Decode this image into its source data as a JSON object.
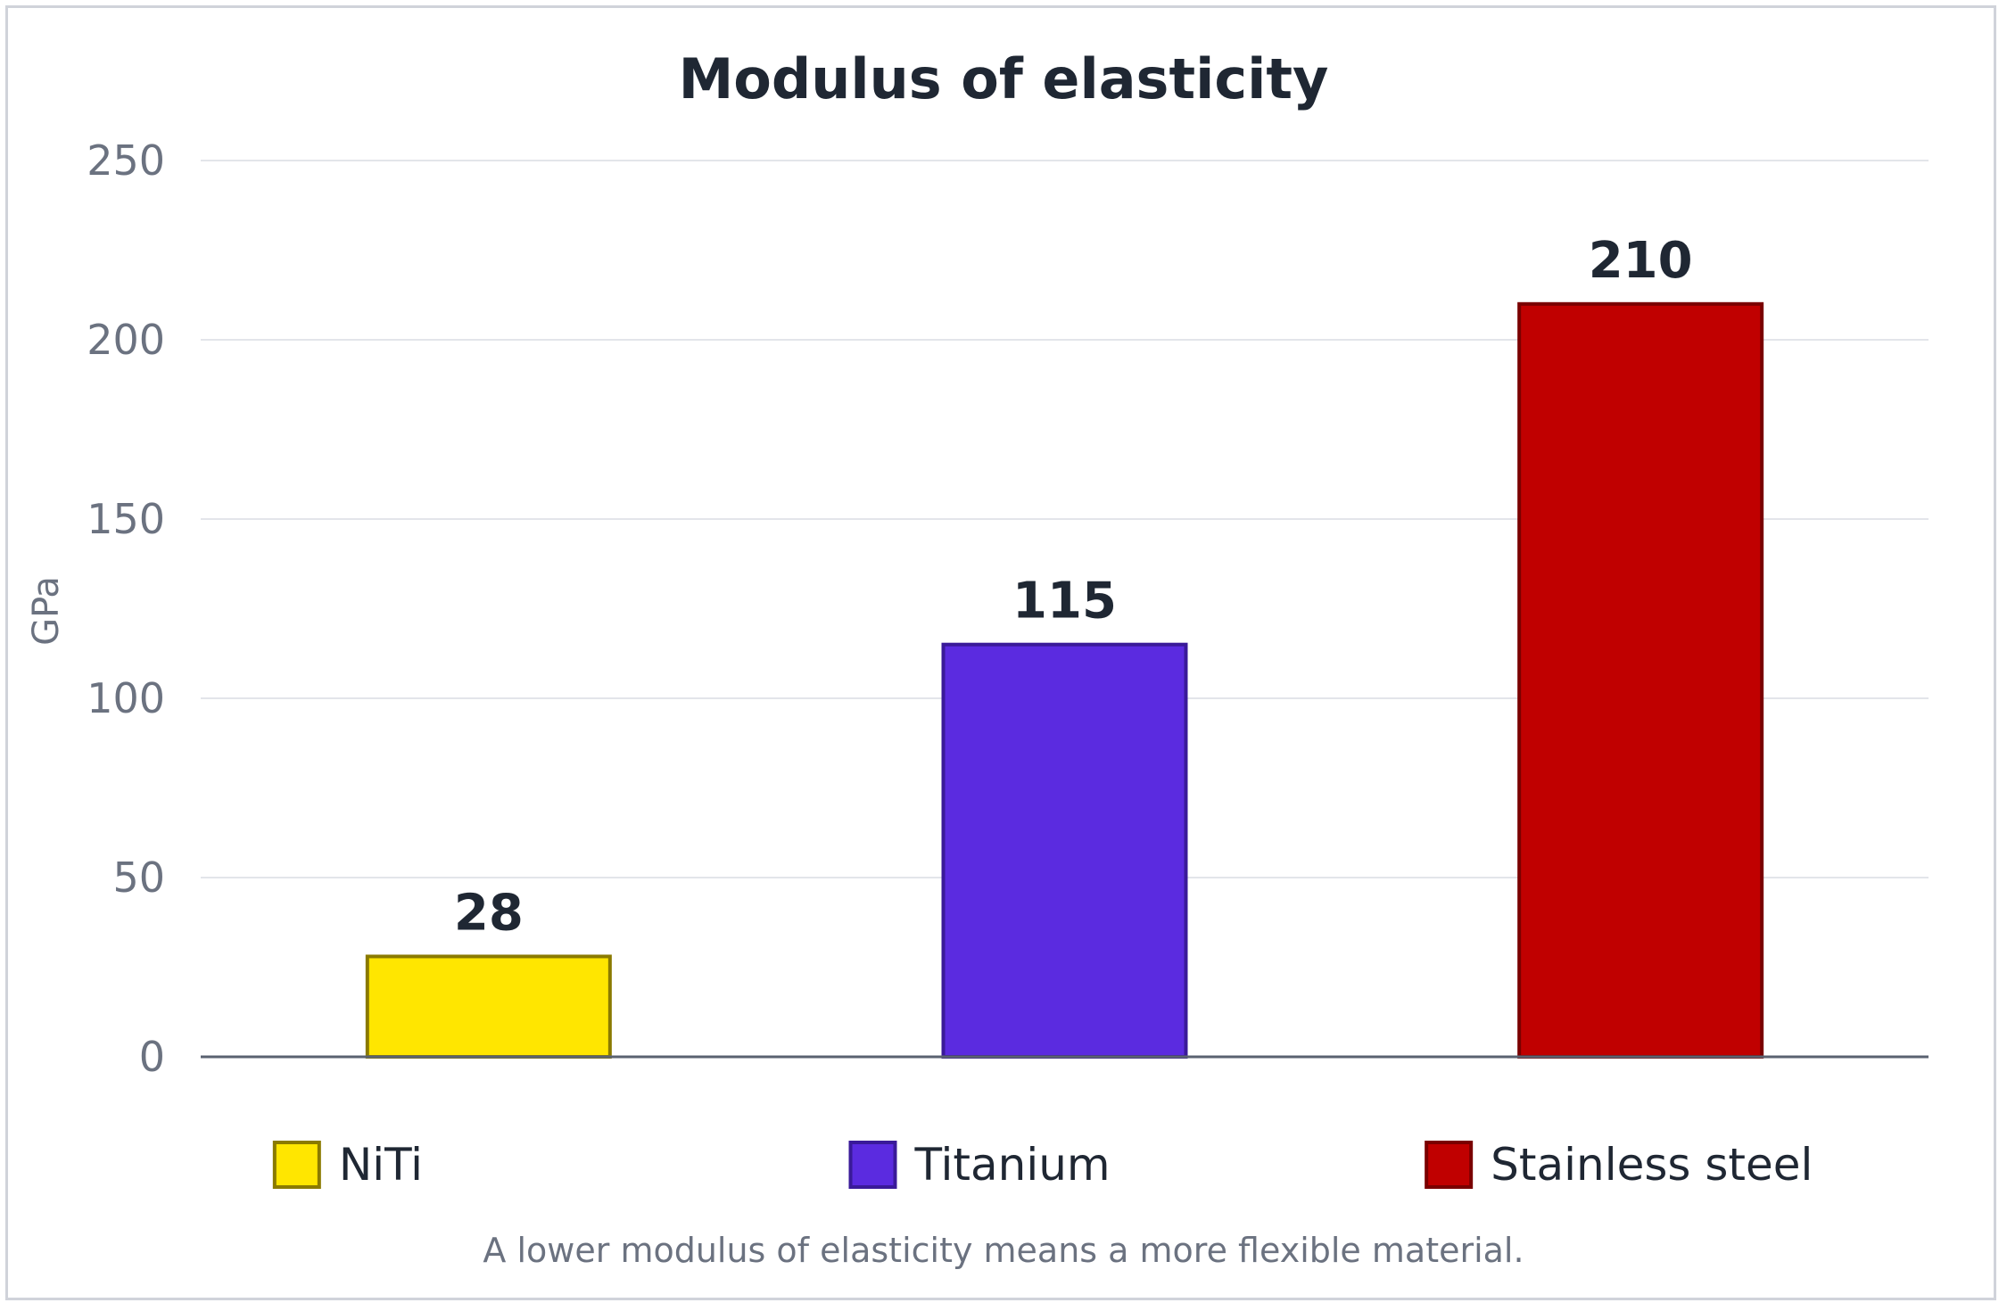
{
  "chart_data": {
    "type": "bar",
    "title": "Modulus of elasticity",
    "ylabel": "GPa",
    "xlabel": "",
    "categories": [
      "NiTi",
      "Titanium",
      "Stainless steel"
    ],
    "values": [
      28,
      115,
      210
    ],
    "colors": [
      "#ffe600",
      "#5b2be0",
      "#c00000"
    ],
    "border_colors": [
      "#8a7a00",
      "#3a1a99",
      "#7a0000"
    ],
    "ylim": [
      0,
      250
    ],
    "yticks": [
      0,
      50,
      100,
      150,
      200,
      250
    ],
    "grid": true,
    "data_labels": [
      "28",
      "115",
      "210"
    ],
    "legend": {
      "position": "bottom",
      "entries": [
        "NiTi",
        "Titanium",
        "Stainless steel"
      ]
    },
    "footnote": "A lower modulus of elasticity means a more flexible material."
  }
}
